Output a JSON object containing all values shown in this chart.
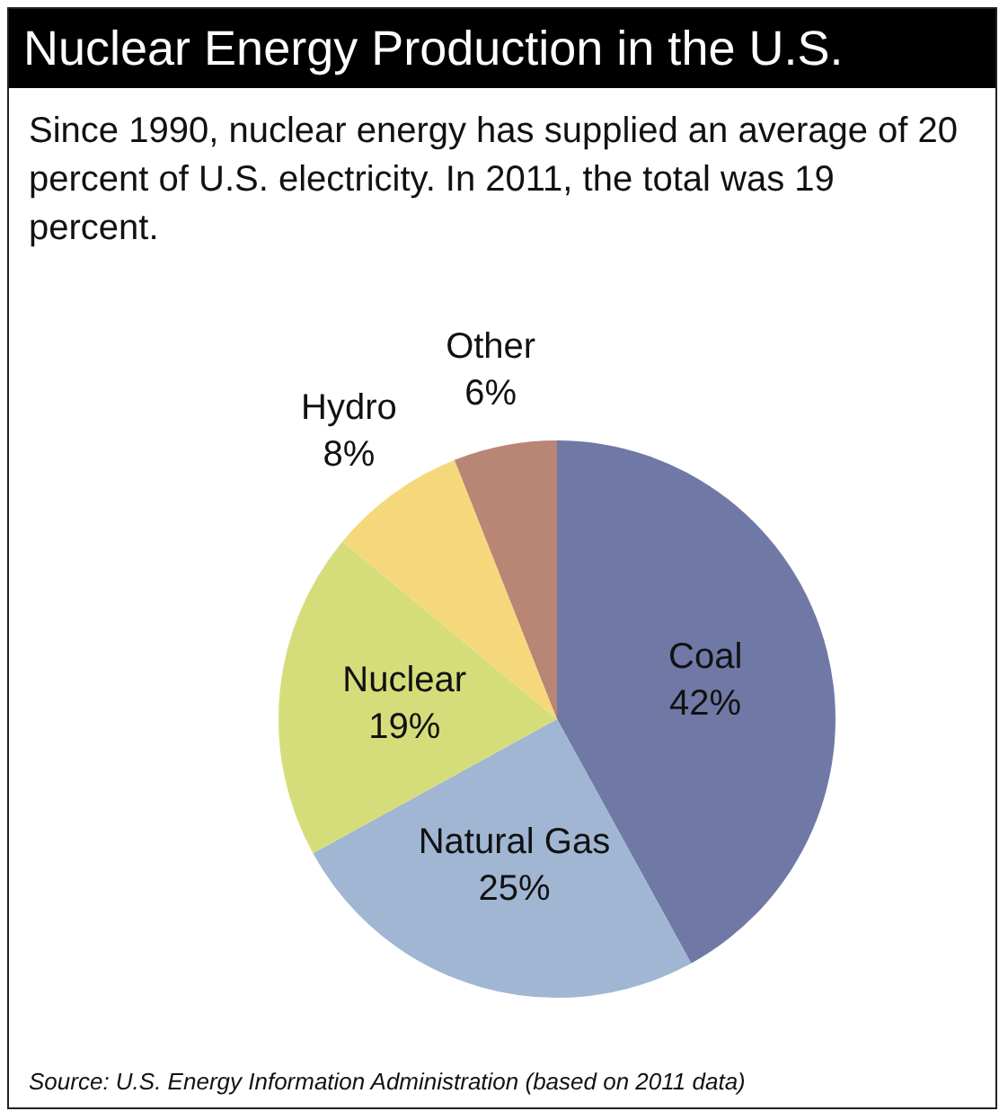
{
  "chart_data": {
    "type": "pie",
    "title": "Nuclear Energy Production in the U.S.",
    "subtitle": "Since 1990, nuclear energy has supplied an average of 20 percent of U.S. electricity.  In 2011, the total was 19 percent.",
    "categories": [
      "Coal",
      "Natural Gas",
      "Nuclear",
      "Hydro",
      "Other"
    ],
    "values": [
      42,
      25,
      19,
      8,
      6
    ],
    "value_labels": [
      "42%",
      "25%",
      "19%",
      "8%",
      "6%"
    ],
    "colors": [
      "#7079a6",
      "#a0b6d3",
      "#d5dd7a",
      "#f6d87c",
      "#b98574"
    ],
    "legend": false,
    "annotations": [
      "Source: U.S. Energy Information Administration (based on 2011 data)"
    ]
  }
}
